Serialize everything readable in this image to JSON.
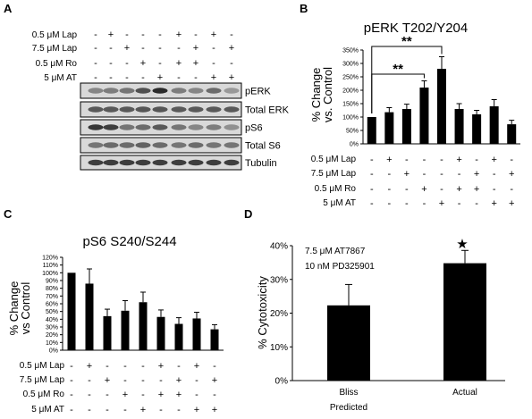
{
  "panels": {
    "A": "A",
    "B": "B",
    "C": "C",
    "D": "D"
  },
  "conditions": [
    "0.5 μM Lap",
    "7.5 μM Lap",
    "0.5 μM Ro",
    "5 μM AT"
  ],
  "signs_A": [
    [
      "-",
      "+",
      "-",
      "-",
      "-",
      "+",
      "-",
      "+",
      "-"
    ],
    [
      "-",
      "-",
      "+",
      "-",
      "-",
      "-",
      "+",
      "-",
      "+"
    ],
    [
      "-",
      "-",
      "-",
      "+",
      "-",
      "+",
      "+",
      "-",
      "-"
    ],
    [
      "-",
      "-",
      "-",
      "-",
      "+",
      "-",
      "-",
      "+",
      "+"
    ]
  ],
  "signs_BC": [
    [
      "-",
      "+",
      "-",
      "-",
      "-",
      "+",
      "-",
      "+",
      "-"
    ],
    [
      "-",
      "-",
      "+",
      "-",
      "-",
      "-",
      "+",
      "-",
      "+"
    ],
    [
      "-",
      "-",
      "-",
      "+",
      "-",
      "+",
      "+",
      "-",
      "-"
    ],
    [
      "-",
      "-",
      "-",
      "-",
      "+",
      "-",
      "-",
      "+",
      "+"
    ]
  ],
  "blot_labels": [
    "pERK",
    "Total ERK",
    "pS6",
    "Total S6",
    "Tubulin"
  ],
  "colors": {
    "bar": "#000000",
    "band": "#222222",
    "blot_bg": "#d9d9d9"
  },
  "chart_data": [
    {
      "panel": "B",
      "type": "bar",
      "title": "pERK T202/Y204",
      "ylabel": "% Change vs. Control",
      "ylabel_lines": [
        "% Change",
        "vs. Control"
      ],
      "ylim": [
        0,
        350
      ],
      "yticks": [
        0,
        50,
        100,
        150,
        200,
        250,
        300,
        350
      ],
      "ytick_labels": [
        "0%",
        "50%",
        "100%",
        "150%",
        "200%",
        "250%",
        "300%",
        "350%"
      ],
      "values": [
        100,
        118,
        130,
        210,
        280,
        130,
        110,
        140,
        73
      ],
      "errors": [
        0,
        17,
        18,
        25,
        45,
        20,
        15,
        25,
        15
      ],
      "significance": [
        {
          "from": 0,
          "to": 3,
          "label": "**"
        },
        {
          "from": 0,
          "to": 4,
          "label": "**"
        }
      ],
      "grid": false
    },
    {
      "panel": "C",
      "type": "bar",
      "title": "pS6 S240/S244",
      "ylabel": "% Change vs Control",
      "ylabel_lines": [
        "% Change",
        "vs Control"
      ],
      "ylim": [
        0,
        120
      ],
      "yticks": [
        0,
        10,
        20,
        30,
        40,
        50,
        60,
        70,
        80,
        90,
        100,
        110,
        120
      ],
      "ytick_labels": [
        "0%",
        "10%",
        "20%",
        "30%",
        "40%",
        "50%",
        "60%",
        "70%",
        "80%",
        "90%",
        "100%",
        "110%",
        "120%"
      ],
      "values": [
        100,
        86,
        44,
        51,
        62,
        43,
        34,
        41,
        27
      ],
      "errors": [
        0,
        19,
        9,
        13,
        13,
        9,
        8,
        8,
        6
      ],
      "grid": false
    },
    {
      "panel": "D",
      "type": "bar",
      "ylabel": "% Cytotoxicity",
      "ylim": [
        0,
        40
      ],
      "yticks": [
        0,
        10,
        20,
        30,
        40
      ],
      "ytick_labels": [
        "0%",
        "10%",
        "20%",
        "30%",
        "40%"
      ],
      "categories": [
        "Bliss Predicted",
        "Actual"
      ],
      "category_lines": [
        [
          "Bliss",
          "Predicted"
        ],
        [
          "Actual"
        ]
      ],
      "values": [
        22.3,
        34.8
      ],
      "errors": [
        6.2,
        3.8
      ],
      "annotations": [
        "7.5 μM AT7867",
        "10 nM PD325901"
      ],
      "significance_label": "★",
      "grid": false
    }
  ]
}
